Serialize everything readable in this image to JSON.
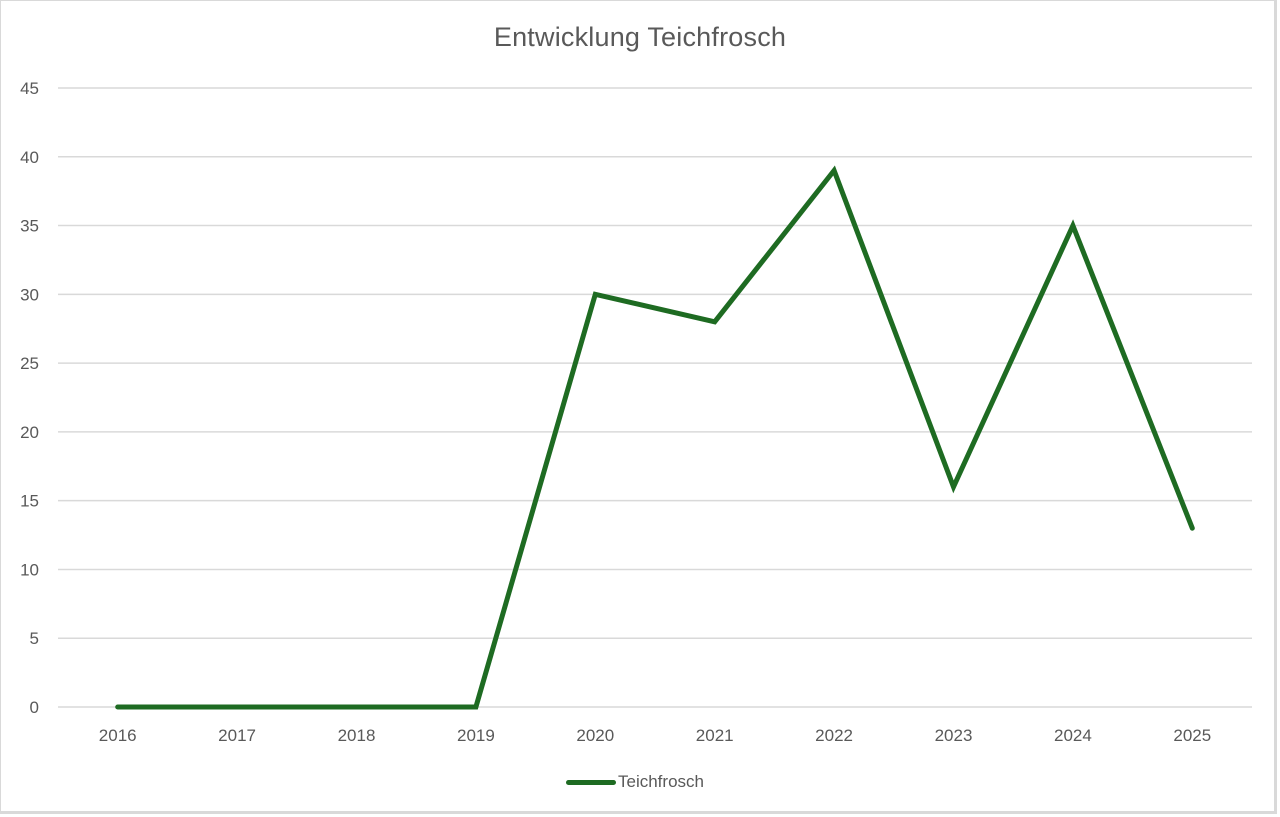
{
  "chart_data": {
    "type": "line",
    "title": "Entwicklung Teichfrosch",
    "xlabel": "",
    "ylabel": "",
    "categories": [
      "2016",
      "2017",
      "2018",
      "2019",
      "2020",
      "2021",
      "2022",
      "2023",
      "2024",
      "2025"
    ],
    "series": [
      {
        "name": "Teichfrosch",
        "color": "#1e6b22",
        "values": [
          0,
          0,
          0,
          0,
          30,
          28,
          39,
          16,
          35,
          13
        ]
      }
    ],
    "ylim": [
      0,
      45
    ],
    "yticks": [
      0,
      5,
      10,
      15,
      20,
      25,
      30,
      35,
      40,
      45
    ],
    "grid": true,
    "legend_position": "bottom"
  },
  "colors": {
    "series": "#1e6b22",
    "grid": "#d9d9d9",
    "text": "#595959"
  }
}
